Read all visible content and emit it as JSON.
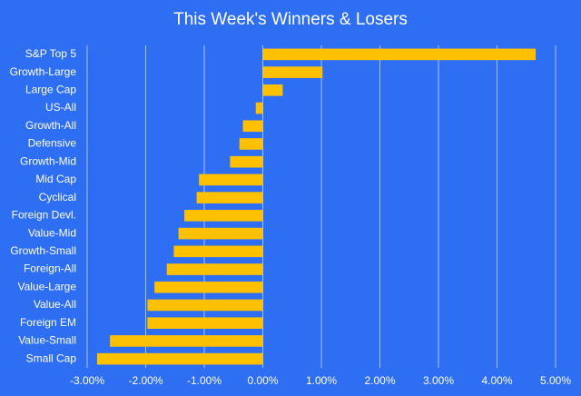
{
  "chart_data": {
    "type": "hbar",
    "title": "This Week's Winners & Losers",
    "categories": [
      "S&P Top 5",
      "Growth-Large",
      "Large Cap",
      "US-All",
      "Growth-All",
      "Defensive",
      "Growth-Mid",
      "Mid Cap",
      "Cyclical",
      "Foreign Devl.",
      "Value-Mid",
      "Growth-Small",
      "Foreign-All",
      "Value-Large",
      "Value-All",
      "Foreign EM",
      "Value-Small",
      "Small Cap"
    ],
    "values": [
      4.66,
      1.02,
      0.34,
      -0.12,
      -0.34,
      -0.4,
      -0.56,
      -1.09,
      -1.13,
      -1.34,
      -1.44,
      -1.52,
      -1.64,
      -1.85,
      -1.97,
      -1.97,
      -2.61,
      -2.83
    ],
    "color": "#ffc000",
    "xlim": [
      -3,
      5
    ],
    "xticks": [
      {
        "value": -3,
        "label": "-3.00%"
      },
      {
        "value": -2,
        "label": "-2.00%"
      },
      {
        "value": -1,
        "label": "-1.00%"
      },
      {
        "value": 0,
        "label": "0.00%"
      },
      {
        "value": 1,
        "label": "1.00%"
      },
      {
        "value": 2,
        "label": "2.00%"
      },
      {
        "value": 3,
        "label": "3.00%"
      },
      {
        "value": 4,
        "label": "4.00%"
      },
      {
        "value": 5,
        "label": "5.00%"
      }
    ],
    "grid": true
  }
}
